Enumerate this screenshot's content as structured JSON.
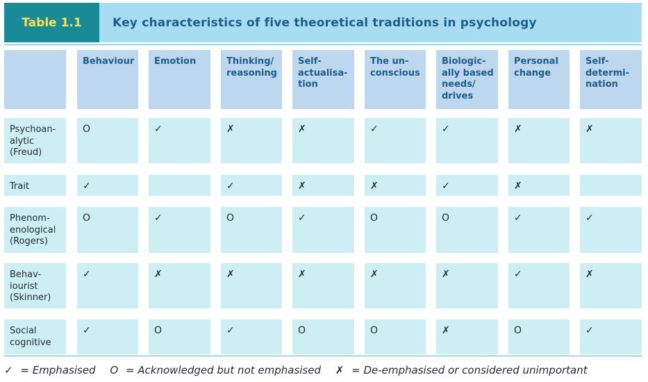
{
  "header": {
    "table_label": "Table 1.1",
    "caption": "Key characteristics of five theoretical traditions in psychology"
  },
  "columns": [
    "Behaviour",
    "Emotion",
    "Thinking/\nreasoning",
    "Self-\nactualisa-\ntion",
    "The un-\nconscious",
    "Biologic-\nally based\nneeds/\ndrives",
    "Personal\nchange",
    "Self-\ndetermi-\nnation"
  ],
  "rows": [
    {
      "label": "Psychoan-\nalytic\n(Freud)",
      "cells": [
        "O",
        "✓",
        "✗",
        "✗",
        "✓",
        "✓",
        "✗",
        "✗"
      ]
    },
    {
      "label": "Trait",
      "cells": [
        "✓",
        "",
        "✓",
        "✗",
        "✗",
        "✓",
        "✗",
        ""
      ]
    },
    {
      "label": "Phenom-\nenological\n(Rogers)",
      "cells": [
        "O",
        "✓",
        "O",
        "✓",
        "O",
        "O",
        "✓",
        "✓"
      ]
    },
    {
      "label": "Behav-\niourist\n(Skinner)",
      "cells": [
        "✓",
        "✗",
        "✗",
        "✗",
        "✗",
        "✗",
        "✓",
        "✗"
      ]
    },
    {
      "label": "Social\ncognitive",
      "cells": [
        "✓",
        "O",
        "✓",
        "O",
        "O",
        "✗",
        "O",
        "✓"
      ]
    }
  ],
  "legend": {
    "tick_symbol": "✓",
    "tick_text": "= Emphasised",
    "o_symbol": "O",
    "o_text": "= Acknowledged but not emphasised",
    "cross_symbol": "✗",
    "cross_text": "= De-emphasised or considered unimportant"
  },
  "colors": {
    "label_bg": "#1a8a96",
    "label_text": "#f7e25a",
    "header_bg": "#a8dcf0",
    "caption_text": "#1d5d8c",
    "column_header_bg": "#bdd7ee",
    "cell_bg": "#cdeef2"
  }
}
